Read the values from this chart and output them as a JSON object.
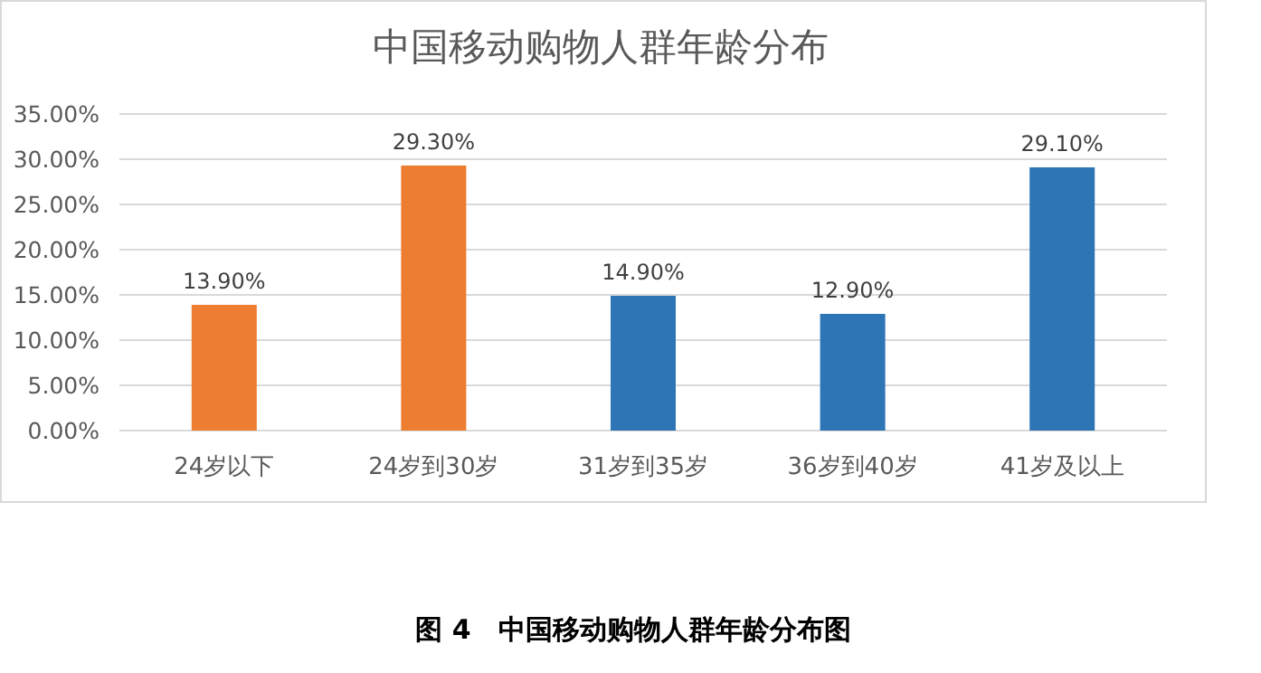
{
  "chart_data": {
    "type": "bar",
    "title": "中国移动购物人群年龄分布",
    "categories": [
      "24岁以下",
      "24岁到30岁",
      "31岁到35岁",
      "36岁到40岁",
      "41岁及以上"
    ],
    "values": [
      13.9,
      29.3,
      14.9,
      12.9,
      29.1
    ],
    "colors": [
      "#ed7d31",
      "#ed7d31",
      "#2e75b6",
      "#2e75b6",
      "#2e75b6"
    ],
    "value_labels": [
      "13.90%",
      "29.30%",
      "14.90%",
      "12.90%",
      "29.10%"
    ],
    "ylim": [
      0,
      35
    ],
    "yticks": [
      {
        "value": 0,
        "label": "0.00%"
      },
      {
        "value": 5,
        "label": "5.00%"
      },
      {
        "value": 10,
        "label": "10.00%"
      },
      {
        "value": 15,
        "label": "15.00%"
      },
      {
        "value": 20,
        "label": "20.00%"
      },
      {
        "value": 25,
        "label": "25.00%"
      },
      {
        "value": 30,
        "label": "30.00%"
      },
      {
        "value": 35,
        "label": "35.00%"
      }
    ],
    "grid": "y",
    "annotations": [
      "图 4　中国移动购物人群年龄分布图"
    ]
  }
}
